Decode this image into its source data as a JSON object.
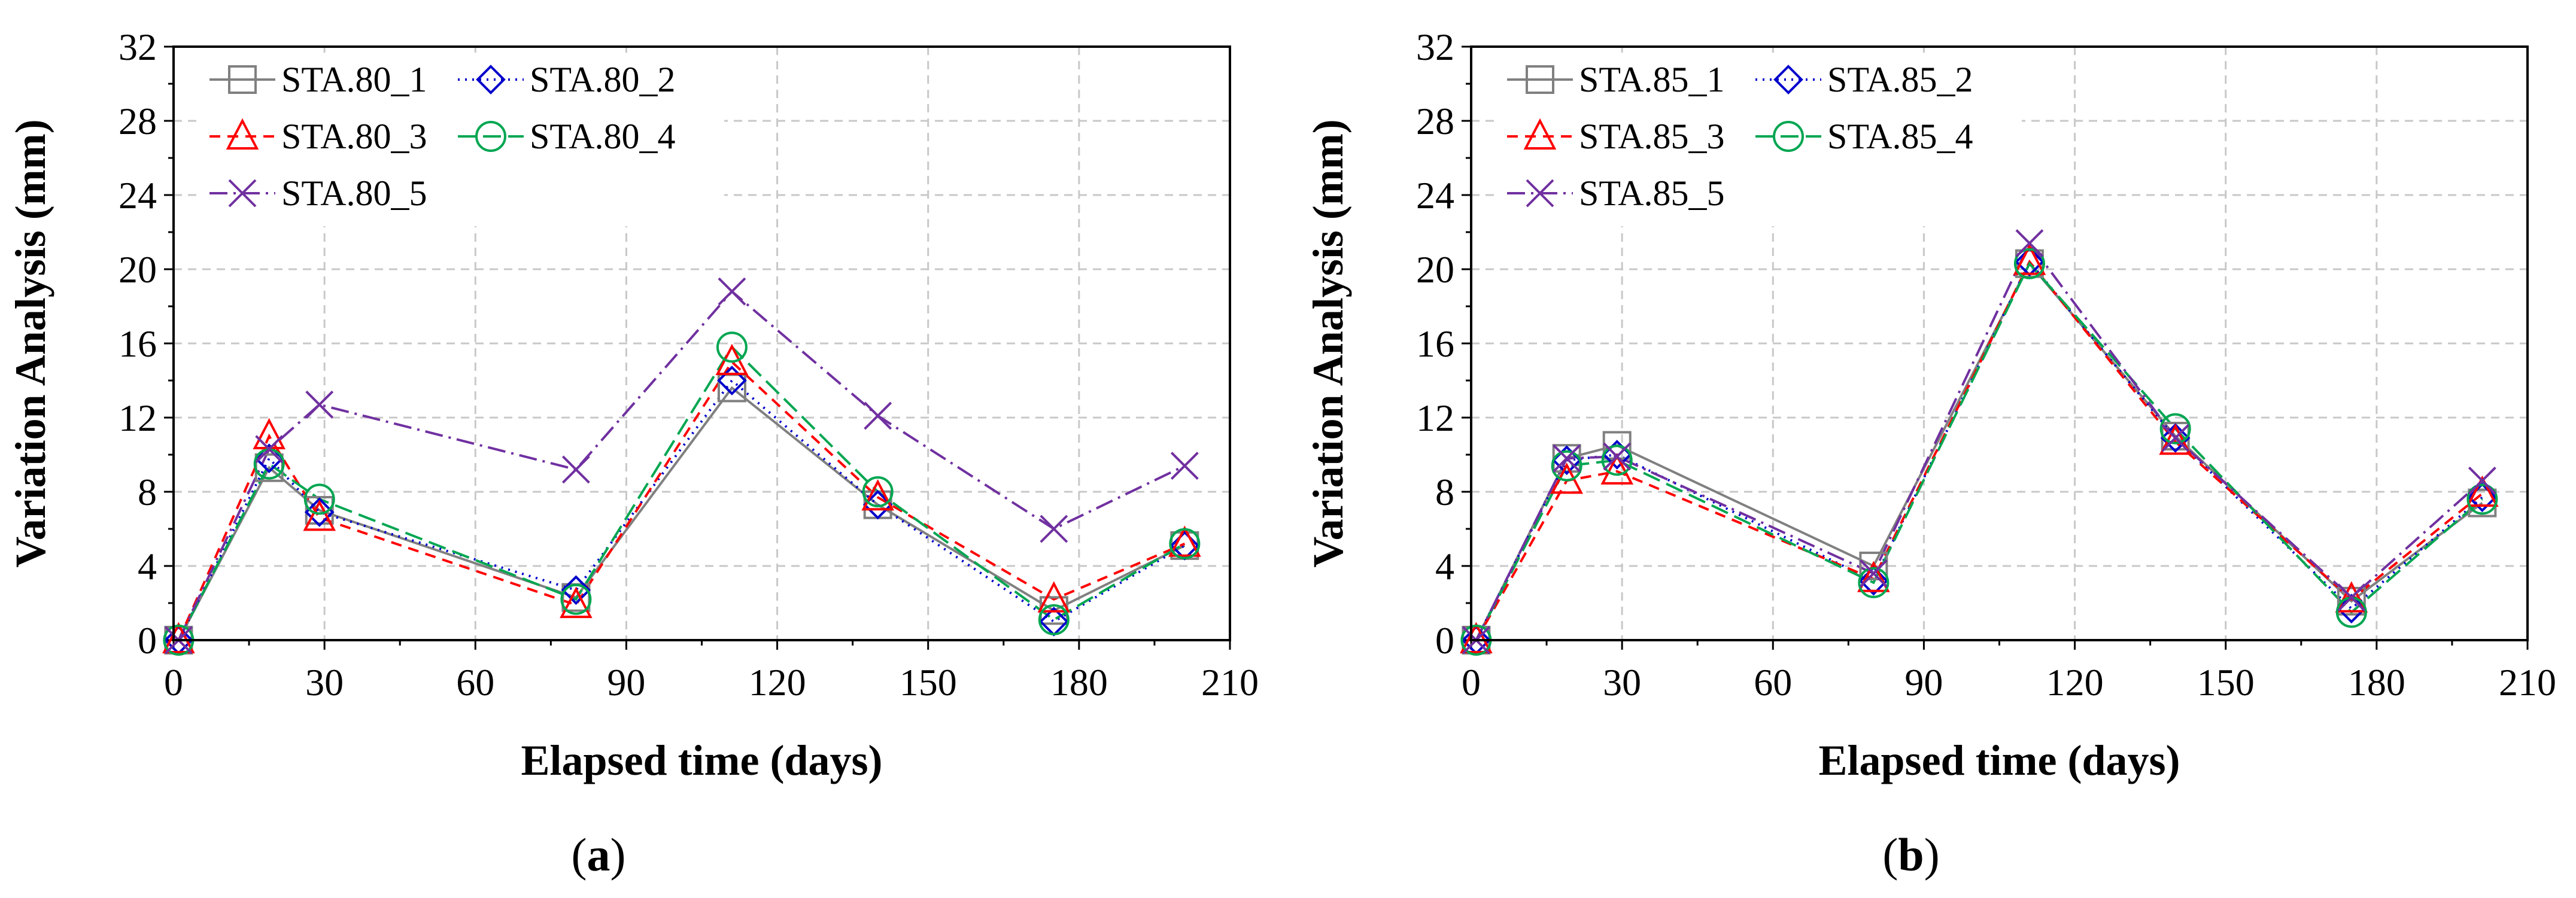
{
  "chart_data": [
    {
      "type": "line",
      "caption": "a",
      "xlabel": "Elapsed time (days)",
      "ylabel": "Variation Analysis (mm)",
      "xlim": [
        0,
        210
      ],
      "ylim": [
        0,
        32
      ],
      "xticks": [
        0,
        30,
        60,
        90,
        120,
        150,
        180,
        210
      ],
      "yticks": [
        0,
        4,
        8,
        12,
        16,
        20,
        24,
        28,
        32
      ],
      "grid": true,
      "legend_position": "top-left",
      "x": [
        1,
        19,
        29,
        80,
        111,
        140,
        175,
        201
      ],
      "series": [
        {
          "name": "STA.80_1",
          "color": "#808080",
          "marker": "square",
          "dash": "",
          "values": [
            0,
            9.3,
            7.0,
            2.3,
            13.6,
            7.3,
            1.6,
            5.1
          ]
        },
        {
          "name": "STA.80_2",
          "color": "#0000cc",
          "marker": "diamond",
          "dash": "3,9",
          "values": [
            0,
            9.8,
            6.9,
            2.7,
            14.0,
            7.3,
            1.0,
            5.1
          ]
        },
        {
          "name": "STA.80_3",
          "color": "#ff0000",
          "marker": "triangle",
          "dash": "18,12",
          "values": [
            0,
            11.0,
            6.6,
            1.9,
            15.0,
            7.7,
            2.2,
            5.2
          ]
        },
        {
          "name": "STA.80_4",
          "color": "#00a651",
          "marker": "circle",
          "dash": "30,12",
          "values": [
            0,
            9.5,
            7.6,
            2.2,
            15.8,
            8.0,
            1.1,
            5.2
          ]
        },
        {
          "name": "STA.80_5",
          "color": "#7030a0",
          "marker": "cross",
          "dash": "30,10,4,10",
          "values": [
            0,
            10.3,
            12.7,
            9.2,
            18.8,
            12.1,
            6.0,
            9.4
          ]
        }
      ]
    },
    {
      "type": "line",
      "caption": "b",
      "xlabel": "Elapsed time (days)",
      "ylabel": "Variation Analysis (mm)",
      "xlim": [
        0,
        210
      ],
      "ylim": [
        0,
        32
      ],
      "xticks": [
        0,
        30,
        60,
        90,
        120,
        150,
        180,
        210
      ],
      "yticks": [
        0,
        4,
        8,
        12,
        16,
        20,
        24,
        28,
        32
      ],
      "grid": true,
      "legend_position": "top-left",
      "x": [
        1,
        19,
        29,
        80,
        111,
        140,
        175,
        201
      ],
      "series": [
        {
          "name": "STA.85_1",
          "color": "#808080",
          "marker": "square",
          "dash": "",
          "values": [
            0,
            9.8,
            10.5,
            4.0,
            20.3,
            11.0,
            2.1,
            7.4
          ]
        },
        {
          "name": "STA.85_2",
          "color": "#0000cc",
          "marker": "diamond",
          "dash": "3,9",
          "values": [
            0,
            9.7,
            10.0,
            3.2,
            20.4,
            10.9,
            1.7,
            7.7
          ]
        },
        {
          "name": "STA.85_3",
          "color": "#ff0000",
          "marker": "triangle",
          "dash": "18,12",
          "values": [
            0,
            8.6,
            9.1,
            3.3,
            20.4,
            10.7,
            2.2,
            7.9
          ]
        },
        {
          "name": "STA.85_4",
          "color": "#00a651",
          "marker": "circle",
          "dash": "30,12",
          "values": [
            0,
            9.4,
            9.7,
            3.1,
            20.3,
            11.4,
            1.5,
            7.6
          ]
        },
        {
          "name": "STA.85_5",
          "color": "#7030a0",
          "marker": "cross",
          "dash": "30,10,4,10",
          "values": [
            0,
            9.8,
            9.9,
            3.6,
            21.4,
            10.9,
            2.3,
            8.6
          ]
        }
      ]
    }
  ]
}
